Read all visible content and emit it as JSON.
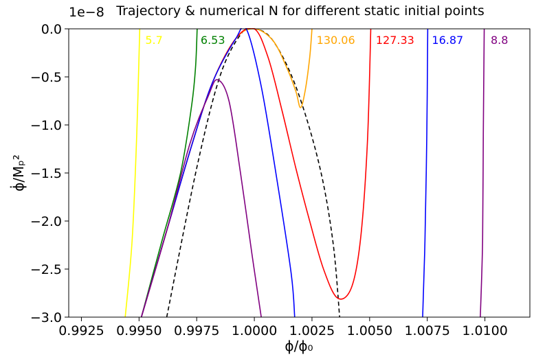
{
  "chart_data": {
    "type": "line",
    "title": "Trajectory & numerical N for different static initial points",
    "offset_text": "1e−8",
    "xlabel": "ϕ/ϕ₀",
    "ylabel": "ϕ̇/Mₚ²",
    "xlim": [
      0.99195,
      1.01195
    ],
    "ylim": [
      -3.0,
      0.0
    ],
    "grid": false,
    "x_ticks": [
      {
        "value": 0.9925,
        "label": "0.9925"
      },
      {
        "value": 0.995,
        "label": "0.9950"
      },
      {
        "value": 0.9975,
        "label": "0.9975"
      },
      {
        "value": 1.0,
        "label": "1.0000"
      },
      {
        "value": 1.0025,
        "label": "1.0025"
      },
      {
        "value": 1.005,
        "label": "1.0050"
      },
      {
        "value": 1.0075,
        "label": "1.0075"
      },
      {
        "value": 1.01,
        "label": "1.0100"
      }
    ],
    "y_ticks": [
      {
        "value": 0.0,
        "label": "0.0"
      },
      {
        "value": -0.5,
        "label": "−0.5"
      },
      {
        "value": -1.0,
        "label": "−1.0"
      },
      {
        "value": -1.5,
        "label": "−1.5"
      },
      {
        "value": -2.0,
        "label": "−2.0"
      },
      {
        "value": -2.5,
        "label": "−2.5"
      },
      {
        "value": -3.0,
        "label": "−3.0"
      }
    ],
    "series": [
      {
        "color": "#000000",
        "dash": true,
        "points": [
          [
            0.9962,
            -3.0
          ],
          [
            0.9975,
            -1.45
          ],
          [
            0.9985,
            -0.5
          ],
          [
            0.9994,
            -0.06
          ],
          [
            1.0,
            0.0
          ],
          [
            1.0008,
            -0.12
          ],
          [
            1.0018,
            -0.6
          ],
          [
            1.0028,
            -1.4
          ],
          [
            1.0034,
            -2.2
          ],
          [
            1.0037,
            -3.0
          ]
        ]
      },
      {
        "color": "#ffff00",
        "points": [
          [
            0.9944,
            -3.0
          ],
          [
            0.9947,
            -2.2
          ],
          [
            0.9949,
            -1.1
          ],
          [
            0.99503,
            0.0
          ]
        ]
      },
      {
        "color": "#008000",
        "points": [
          [
            0.9951,
            -3.0
          ],
          [
            0.996,
            -2.2
          ],
          [
            0.9968,
            -1.5
          ],
          [
            0.99728,
            -0.8
          ],
          [
            0.99745,
            -0.4
          ],
          [
            0.99752,
            0.0
          ]
        ]
      },
      {
        "color": "#ffa500",
        "points": [
          [
            0.9951,
            -3.0
          ],
          [
            0.9962,
            -2.1
          ],
          [
            0.9973,
            -1.2
          ],
          [
            0.9982,
            -0.55
          ],
          [
            0.9992,
            -0.1
          ],
          [
            1.0,
            0.0
          ],
          [
            1.0008,
            -0.12
          ],
          [
            1.0014,
            -0.4
          ],
          [
            1.0018,
            -0.65
          ],
          [
            1.002,
            -0.82
          ],
          [
            1.0022,
            -0.65
          ],
          [
            1.0024,
            -0.3
          ],
          [
            1.0025,
            0.0
          ]
        ]
      },
      {
        "color": "#ff0000",
        "points": [
          [
            0.9951,
            -3.0
          ],
          [
            0.9962,
            -2.1
          ],
          [
            0.9973,
            -1.2
          ],
          [
            0.9982,
            -0.55
          ],
          [
            0.9992,
            -0.1
          ],
          [
            1.0,
            0.0
          ],
          [
            1.0006,
            -0.3
          ],
          [
            1.0012,
            -0.85
          ],
          [
            1.0018,
            -1.45
          ],
          [
            1.0024,
            -2.0
          ],
          [
            1.003,
            -2.5
          ],
          [
            1.0036,
            -2.8
          ],
          [
            1.0042,
            -2.7
          ],
          [
            1.0046,
            -2.2
          ],
          [
            1.0049,
            -1.2
          ],
          [
            1.00505,
            0.0
          ]
        ]
      },
      {
        "color": "#0000ff",
        "points": [
          [
            0.9951,
            -3.0
          ],
          [
            0.9962,
            -2.1
          ],
          [
            0.9973,
            -1.2
          ],
          [
            0.9982,
            -0.55
          ],
          [
            0.9992,
            -0.1
          ],
          [
            0.99965,
            0.0
          ],
          [
            1.0003,
            -0.6
          ],
          [
            1.001,
            -1.6
          ],
          [
            1.0016,
            -2.55
          ],
          [
            1.00175,
            -3.0
          ]
        ]
      },
      {
        "color": "#0000ff",
        "points": [
          [
            1.0073,
            -3.0
          ],
          [
            1.0074,
            -2.2
          ],
          [
            1.00748,
            -1.1
          ],
          [
            1.00752,
            0.0
          ]
        ]
      },
      {
        "color": "#800080",
        "points": [
          [
            0.9951,
            -3.0
          ],
          [
            0.9962,
            -2.1
          ],
          [
            0.9972,
            -1.2
          ],
          [
            0.998,
            -0.7
          ],
          [
            0.9984,
            -0.53
          ],
          [
            0.9989,
            -0.75
          ],
          [
            0.9994,
            -1.5
          ],
          [
            0.9999,
            -2.35
          ],
          [
            1.0003,
            -3.0
          ]
        ]
      },
      {
        "color": "#800080",
        "points": [
          [
            1.0098,
            -3.0
          ],
          [
            1.0099,
            -2.2
          ],
          [
            1.00993,
            -1.1
          ],
          [
            1.00997,
            0.0
          ]
        ]
      }
    ],
    "annotations": [
      {
        "text": "5.7",
        "x": 0.99527,
        "y": -0.115,
        "color": "#ffff00"
      },
      {
        "text": "6.53",
        "x": 0.99767,
        "y": -0.115,
        "color": "#008000"
      },
      {
        "text": "130.06",
        "x": 1.0027,
        "y": -0.115,
        "color": "#ffa500"
      },
      {
        "text": "127.33",
        "x": 1.00527,
        "y": -0.115,
        "color": "#ff0000"
      },
      {
        "text": "16.87",
        "x": 1.0077,
        "y": -0.115,
        "color": "#0000ff"
      },
      {
        "text": "8.8",
        "x": 1.01025,
        "y": -0.115,
        "color": "#800080"
      }
    ]
  }
}
